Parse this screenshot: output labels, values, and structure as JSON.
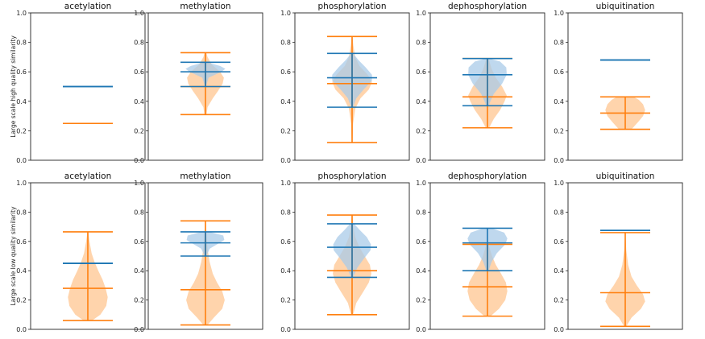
{
  "colors": {
    "blue": "#1f77b4",
    "orange": "#ff7f0e",
    "blue_fill": "#a9cbe8",
    "orange_fill": "#ffcc9e"
  },
  "chart_data": {
    "type": "violin",
    "ylim": [
      0,
      1
    ],
    "yticks": [
      "0.0",
      "0.2",
      "0.4",
      "0.6",
      "0.8",
      "1.0"
    ],
    "rows": [
      {
        "ylabel": "Large scale high quality similarity",
        "panels": [
          {
            "title": "acetylation",
            "blue": {
              "min": 0.5,
              "median": 0.5,
              "max": 0.5,
              "shape": [
                [
                  0.5,
                  0.0
                ]
              ]
            },
            "orange": {
              "min": 0.25,
              "median": 0.25,
              "max": 0.25,
              "shape": [
                [
                  0.25,
                  0.0
                ]
              ]
            }
          },
          {
            "title": "methylation",
            "blue": {
              "min": 0.5,
              "median": 0.6,
              "max": 0.665,
              "shape": [
                [
                  0.5,
                  0.02
                ],
                [
                  0.56,
                  0.15
                ],
                [
                  0.6,
                  0.75
                ],
                [
                  0.62,
                  0.95
                ],
                [
                  0.64,
                  0.7
                ],
                [
                  0.665,
                  0.05
                ]
              ]
            },
            "orange": {
              "min": 0.31,
              "median": 0.5,
              "max": 0.73,
              "shape": [
                [
                  0.31,
                  0.05
                ],
                [
                  0.36,
                  0.1
                ],
                [
                  0.42,
                  0.35
                ],
                [
                  0.47,
                  0.6
                ],
                [
                  0.52,
                  0.82
                ],
                [
                  0.56,
                  0.88
                ],
                [
                  0.6,
                  0.7
                ],
                [
                  0.65,
                  0.3
                ],
                [
                  0.7,
                  0.1
                ],
                [
                  0.73,
                  0.04
                ]
              ]
            }
          },
          {
            "title": "phosphorylation",
            "blue": {
              "min": 0.36,
              "median": 0.56,
              "max": 0.725,
              "shape": [
                [
                  0.36,
                  0.05
                ],
                [
                  0.42,
                  0.2
                ],
                [
                  0.48,
                  0.55
                ],
                [
                  0.54,
                  0.95
                ],
                [
                  0.58,
                  0.95
                ],
                [
                  0.63,
                  0.65
                ],
                [
                  0.68,
                  0.3
                ],
                [
                  0.725,
                  0.05
                ]
              ]
            },
            "orange": {
              "min": 0.12,
              "median": 0.52,
              "max": 0.84,
              "shape": [
                [
                  0.12,
                  0.02
                ],
                [
                  0.25,
                  0.05
                ],
                [
                  0.35,
                  0.15
                ],
                [
                  0.42,
                  0.4
                ],
                [
                  0.48,
                  0.8
                ],
                [
                  0.53,
                  0.95
                ],
                [
                  0.58,
                  0.75
                ],
                [
                  0.64,
                  0.35
                ],
                [
                  0.7,
                  0.15
                ],
                [
                  0.78,
                  0.06
                ],
                [
                  0.84,
                  0.02
                ]
              ]
            }
          },
          {
            "title": "dephosphorylation",
            "blue": {
              "min": 0.37,
              "median": 0.58,
              "max": 0.69,
              "shape": [
                [
                  0.37,
                  0.05
                ],
                [
                  0.45,
                  0.3
                ],
                [
                  0.52,
                  0.7
                ],
                [
                  0.58,
                  0.92
                ],
                [
                  0.63,
                  0.9
                ],
                [
                  0.67,
                  0.6
                ],
                [
                  0.69,
                  0.1
                ]
              ]
            },
            "orange": {
              "min": 0.22,
              "median": 0.43,
              "max": 0.69,
              "shape": [
                [
                  0.22,
                  0.08
                ],
                [
                  0.28,
                  0.3
                ],
                [
                  0.34,
                  0.6
                ],
                [
                  0.4,
                  0.82
                ],
                [
                  0.44,
                  0.92
                ],
                [
                  0.5,
                  0.7
                ],
                [
                  0.56,
                  0.4
                ],
                [
                  0.62,
                  0.2
                ],
                [
                  0.69,
                  0.05
                ]
              ]
            }
          },
          {
            "title": "ubiquitination",
            "blue": {
              "min": 0.68,
              "median": 0.68,
              "max": 0.68,
              "shape": [
                [
                  0.68,
                  0.0
                ]
              ]
            },
            "orange": {
              "min": 0.21,
              "median": 0.32,
              "max": 0.43,
              "shape": [
                [
                  0.21,
                  0.3
                ],
                [
                  0.26,
                  0.62
                ],
                [
                  0.3,
                  0.85
                ],
                [
                  0.34,
                  0.95
                ],
                [
                  0.38,
                  0.85
                ],
                [
                  0.41,
                  0.65
                ],
                [
                  0.43,
                  0.4
                ]
              ]
            }
          }
        ]
      },
      {
        "ylabel": "Large scale low quality similarity",
        "panels": [
          {
            "title": "acetylation",
            "blue": {
              "min": 0.45,
              "median": 0.45,
              "max": 0.45,
              "shape": [
                [
                  0.45,
                  0.0
                ]
              ]
            },
            "orange": {
              "min": 0.06,
              "median": 0.28,
              "max": 0.665,
              "shape": [
                [
                  0.06,
                  0.2
                ],
                [
                  0.1,
                  0.6
                ],
                [
                  0.16,
                  0.88
                ],
                [
                  0.22,
                  0.95
                ],
                [
                  0.28,
                  0.85
                ],
                [
                  0.34,
                  0.7
                ],
                [
                  0.4,
                  0.5
                ],
                [
                  0.46,
                  0.32
                ],
                [
                  0.52,
                  0.18
                ],
                [
                  0.6,
                  0.08
                ],
                [
                  0.665,
                  0.02
                ]
              ]
            }
          },
          {
            "title": "methylation",
            "blue": {
              "min": 0.5,
              "median": 0.59,
              "max": 0.665,
              "shape": [
                [
                  0.5,
                  0.05
                ],
                [
                  0.55,
                  0.2
                ],
                [
                  0.58,
                  0.55
                ],
                [
                  0.61,
                  0.9
                ],
                [
                  0.64,
                  0.85
                ],
                [
                  0.665,
                  0.2
                ]
              ]
            },
            "orange": {
              "min": 0.03,
              "median": 0.27,
              "max": 0.74,
              "shape": [
                [
                  0.03,
                  0.1
                ],
                [
                  0.08,
                  0.4
                ],
                [
                  0.14,
                  0.8
                ],
                [
                  0.2,
                  0.92
                ],
                [
                  0.26,
                  0.8
                ],
                [
                  0.32,
                  0.55
                ],
                [
                  0.38,
                  0.35
                ],
                [
                  0.46,
                  0.2
                ],
                [
                  0.55,
                  0.1
                ],
                [
                  0.65,
                  0.04
                ],
                [
                  0.74,
                  0.02
                ]
              ]
            }
          },
          {
            "title": "phosphorylation",
            "blue": {
              "min": 0.355,
              "median": 0.56,
              "max": 0.72,
              "shape": [
                [
                  0.355,
                  0.05
                ],
                [
                  0.42,
                  0.25
                ],
                [
                  0.48,
                  0.55
                ],
                [
                  0.54,
                  0.88
                ],
                [
                  0.58,
                  0.9
                ],
                [
                  0.63,
                  0.7
                ],
                [
                  0.68,
                  0.35
                ],
                [
                  0.72,
                  0.1
                ]
              ]
            },
            "orange": {
              "min": 0.1,
              "median": 0.4,
              "max": 0.78,
              "shape": [
                [
                  0.1,
                  0.05
                ],
                [
                  0.18,
                  0.2
                ],
                [
                  0.26,
                  0.55
                ],
                [
                  0.32,
                  0.8
                ],
                [
                  0.38,
                  0.92
                ],
                [
                  0.44,
                  0.85
                ],
                [
                  0.5,
                  0.6
                ],
                [
                  0.56,
                  0.35
                ],
                [
                  0.63,
                  0.15
                ],
                [
                  0.7,
                  0.06
                ],
                [
                  0.78,
                  0.02
                ]
              ]
            }
          },
          {
            "title": "dephosphorylation",
            "blue": {
              "min": 0.4,
              "median": 0.59,
              "max": 0.69,
              "shape": [
                [
                  0.4,
                  0.05
                ],
                [
                  0.46,
                  0.2
                ],
                [
                  0.52,
                  0.45
                ],
                [
                  0.58,
                  0.85
                ],
                [
                  0.62,
                  0.95
                ],
                [
                  0.66,
                  0.8
                ],
                [
                  0.69,
                  0.2
                ]
              ]
            },
            "orange": {
              "min": 0.09,
              "median": 0.29,
              "max": 0.58,
              "shape": [
                [
                  0.09,
                  0.15
                ],
                [
                  0.14,
                  0.55
                ],
                [
                  0.2,
                  0.85
                ],
                [
                  0.26,
                  0.95
                ],
                [
                  0.32,
                  0.88
                ],
                [
                  0.38,
                  0.65
                ],
                [
                  0.44,
                  0.4
                ],
                [
                  0.5,
                  0.22
                ],
                [
                  0.58,
                  0.05
                ]
              ]
            }
          },
          {
            "title": "ubiquitination",
            "blue": {
              "min": 0.675,
              "median": 0.675,
              "max": 0.675,
              "shape": [
                [
                  0.675,
                  0.0
                ]
              ]
            },
            "orange": {
              "min": 0.02,
              "median": 0.25,
              "max": 0.66,
              "shape": [
                [
                  0.02,
                  0.05
                ],
                [
                  0.08,
                  0.3
                ],
                [
                  0.14,
                  0.75
                ],
                [
                  0.19,
                  0.95
                ],
                [
                  0.24,
                  0.85
                ],
                [
                  0.3,
                  0.55
                ],
                [
                  0.36,
                  0.3
                ],
                [
                  0.44,
                  0.14
                ],
                [
                  0.54,
                  0.05
                ],
                [
                  0.66,
                  0.01
                ]
              ]
            }
          }
        ]
      }
    ]
  }
}
